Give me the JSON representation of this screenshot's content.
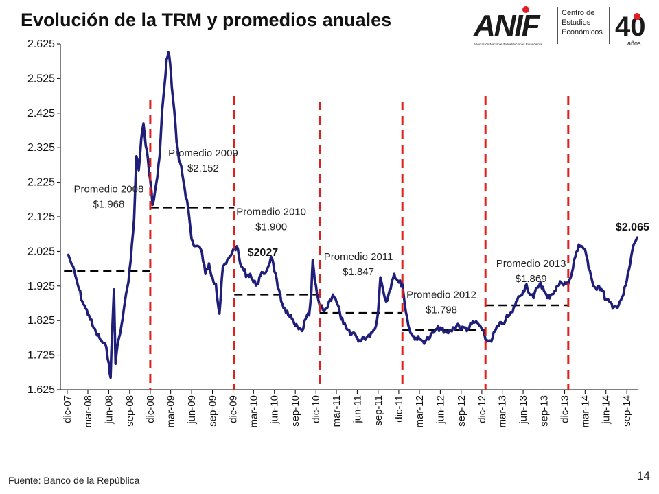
{
  "slide": {
    "title": "Evolución de la TRM y promedios anuales",
    "source": "Fuente: Banco de la República",
    "page_number": "14"
  },
  "logo": {
    "brand": "ANIF",
    "line1": "Centro de",
    "line2": "Estudios",
    "line3": "Económicos",
    "subtitle": "Asociación Nacional de Instituciones Financieras",
    "anniversary": "40",
    "anniversary_sub": "años",
    "brand_color": "#1a1a1a",
    "accent_color": "#e01e24"
  },
  "chart_data": {
    "type": "line",
    "title": "",
    "xlabel": "",
    "ylabel": "",
    "ylim": [
      1625,
      2625
    ],
    "yticks": [
      1625,
      1725,
      1825,
      1925,
      2025,
      2125,
      2225,
      2325,
      2425,
      2525,
      2625
    ],
    "ytick_labels": [
      "1.625",
      "1.725",
      "1.825",
      "1.925",
      "2.025",
      "2.125",
      "2.225",
      "2.325",
      "2.425",
      "2.525",
      "2.625"
    ],
    "xticks": [
      "dic-07",
      "mar-08",
      "jun-08",
      "sep-08",
      "dic-08",
      "mar-09",
      "jun-09",
      "sep-09",
      "dic-09",
      "mar-10",
      "jun-10",
      "sep-10",
      "dic-10",
      "mar-11",
      "jun-11",
      "sep-11",
      "dic-11",
      "mar-12",
      "jun-12",
      "sep-12",
      "dic-12",
      "mar-13",
      "jun-13",
      "sep-13",
      "dic-13",
      "mar-14",
      "jun-14",
      "sep-14"
    ],
    "grid": false,
    "line_color": "#1f1f7a",
    "avg_color": "#000000",
    "divider_color": "#e0201c",
    "series": [
      {
        "values": [
          [
            "2007-12-20",
            2015
          ],
          [
            "2008-01-05",
            1985
          ],
          [
            "2008-01-20",
            1955
          ],
          [
            "2008-02-05",
            1915
          ],
          [
            "2008-02-20",
            1880
          ],
          [
            "2008-03-05",
            1860
          ],
          [
            "2008-03-20",
            1840
          ],
          [
            "2008-04-05",
            1810
          ],
          [
            "2008-04-20",
            1790
          ],
          [
            "2008-05-05",
            1775
          ],
          [
            "2008-05-20",
            1760
          ],
          [
            "2008-06-05",
            1745
          ],
          [
            "2008-06-16",
            1700
          ],
          [
            "2008-06-23",
            1660
          ],
          [
            "2008-06-30",
            1790
          ],
          [
            "2008-07-08",
            1915
          ],
          [
            "2008-07-15",
            1700
          ],
          [
            "2008-07-25",
            1760
          ],
          [
            "2008-08-05",
            1790
          ],
          [
            "2008-08-20",
            1855
          ],
          [
            "2008-09-05",
            1920
          ],
          [
            "2008-09-20",
            2000
          ],
          [
            "2008-10-05",
            2120
          ],
          [
            "2008-10-15",
            2300
          ],
          [
            "2008-10-25",
            2260
          ],
          [
            "2008-11-05",
            2350
          ],
          [
            "2008-11-15",
            2395
          ],
          [
            "2008-11-25",
            2330
          ],
          [
            "2008-12-05",
            2290
          ],
          [
            "2008-12-15",
            2230
          ],
          [
            "2008-12-25",
            2160
          ],
          [
            "2009-01-05",
            2200
          ],
          [
            "2009-01-15",
            2240
          ],
          [
            "2009-01-25",
            2300
          ],
          [
            "2009-02-05",
            2430
          ],
          [
            "2009-02-15",
            2500
          ],
          [
            "2009-02-25",
            2580
          ],
          [
            "2009-03-05",
            2600
          ],
          [
            "2009-03-12",
            2570
          ],
          [
            "2009-03-20",
            2500
          ],
          [
            "2009-03-31",
            2430
          ],
          [
            "2009-04-10",
            2340
          ],
          [
            "2009-04-20",
            2290
          ],
          [
            "2009-05-01",
            2270
          ],
          [
            "2009-05-15",
            2210
          ],
          [
            "2009-05-31",
            2150
          ],
          [
            "2009-06-15",
            2060
          ],
          [
            "2009-06-30",
            2040
          ],
          [
            "2009-07-15",
            2040
          ],
          [
            "2009-07-31",
            2020
          ],
          [
            "2009-08-15",
            1960
          ],
          [
            "2009-08-31",
            1990
          ],
          [
            "2009-09-15",
            1950
          ],
          [
            "2009-09-30",
            1930
          ],
          [
            "2009-10-08",
            1880
          ],
          [
            "2009-10-16",
            1845
          ],
          [
            "2009-10-31",
            1980
          ],
          [
            "2009-11-15",
            1990
          ],
          [
            "2009-11-30",
            2010
          ],
          [
            "2009-12-15",
            2030
          ],
          [
            "2009-12-31",
            2040
          ],
          [
            "2010-01-15",
            1990
          ],
          [
            "2010-01-31",
            1970
          ],
          [
            "2010-02-15",
            1955
          ],
          [
            "2010-02-28",
            1960
          ],
          [
            "2010-03-15",
            1935
          ],
          [
            "2010-03-31",
            1930
          ],
          [
            "2010-04-15",
            1955
          ],
          [
            "2010-04-30",
            1960
          ],
          [
            "2010-05-15",
            1975
          ],
          [
            "2010-05-31",
            2010
          ],
          [
            "2010-06-10",
            1990
          ],
          [
            "2010-06-30",
            1920
          ],
          [
            "2010-07-15",
            1880
          ],
          [
            "2010-07-31",
            1860
          ],
          [
            "2010-08-15",
            1840
          ],
          [
            "2010-08-31",
            1830
          ],
          [
            "2010-09-15",
            1810
          ],
          [
            "2010-09-30",
            1800
          ],
          [
            "2010-10-15",
            1795
          ],
          [
            "2010-10-31",
            1830
          ],
          [
            "2010-11-15",
            1840
          ],
          [
            "2010-11-25",
            1910
          ],
          [
            "2010-12-01",
            2000
          ],
          [
            "2010-12-10",
            1940
          ],
          [
            "2010-12-20",
            1900
          ],
          [
            "2010-12-31",
            1870
          ],
          [
            "2011-01-15",
            1855
          ],
          [
            "2011-01-31",
            1860
          ],
          [
            "2011-02-15",
            1885
          ],
          [
            "2011-02-28",
            1900
          ],
          [
            "2011-03-15",
            1880
          ],
          [
            "2011-03-31",
            1845
          ],
          [
            "2011-04-15",
            1815
          ],
          [
            "2011-04-30",
            1800
          ],
          [
            "2011-05-15",
            1785
          ],
          [
            "2011-05-31",
            1790
          ],
          [
            "2011-06-15",
            1775
          ],
          [
            "2011-06-30",
            1765
          ],
          [
            "2011-07-15",
            1775
          ],
          [
            "2011-07-31",
            1780
          ],
          [
            "2011-08-15",
            1790
          ],
          [
            "2011-08-31",
            1800
          ],
          [
            "2011-09-15",
            1850
          ],
          [
            "2011-09-25",
            1950
          ],
          [
            "2011-10-05",
            1920
          ],
          [
            "2011-10-20",
            1880
          ],
          [
            "2011-10-31",
            1900
          ],
          [
            "2011-11-15",
            1940
          ],
          [
            "2011-11-25",
            1960
          ],
          [
            "2011-12-05",
            1945
          ],
          [
            "2011-12-15",
            1935
          ],
          [
            "2011-12-31",
            1930
          ],
          [
            "2012-01-15",
            1850
          ],
          [
            "2012-01-31",
            1800
          ],
          [
            "2012-02-15",
            1780
          ],
          [
            "2012-02-29",
            1775
          ],
          [
            "2012-03-15",
            1770
          ],
          [
            "2012-03-31",
            1765
          ],
          [
            "2012-04-15",
            1770
          ],
          [
            "2012-04-30",
            1775
          ],
          [
            "2012-05-15",
            1790
          ],
          [
            "2012-05-31",
            1800
          ],
          [
            "2012-06-15",
            1805
          ],
          [
            "2012-06-30",
            1790
          ],
          [
            "2012-07-15",
            1790
          ],
          [
            "2012-07-31",
            1795
          ],
          [
            "2012-08-15",
            1805
          ],
          [
            "2012-08-31",
            1815
          ],
          [
            "2012-09-15",
            1800
          ],
          [
            "2012-09-30",
            1805
          ],
          [
            "2012-10-15",
            1800
          ],
          [
            "2012-10-31",
            1815
          ],
          [
            "2012-11-15",
            1820
          ],
          [
            "2012-11-30",
            1815
          ],
          [
            "2012-12-15",
            1800
          ],
          [
            "2012-12-31",
            1770
          ],
          [
            "2013-01-15",
            1765
          ],
          [
            "2013-01-31",
            1775
          ],
          [
            "2013-02-15",
            1800
          ],
          [
            "2013-02-28",
            1810
          ],
          [
            "2013-03-15",
            1815
          ],
          [
            "2013-03-31",
            1830
          ],
          [
            "2013-04-15",
            1840
          ],
          [
            "2013-04-30",
            1850
          ],
          [
            "2013-05-15",
            1880
          ],
          [
            "2013-05-31",
            1895
          ],
          [
            "2013-06-15",
            1910
          ],
          [
            "2013-06-30",
            1930
          ],
          [
            "2013-07-15",
            1900
          ],
          [
            "2013-07-31",
            1890
          ],
          [
            "2013-08-15",
            1920
          ],
          [
            "2013-08-31",
            1935
          ],
          [
            "2013-09-15",
            1910
          ],
          [
            "2013-09-30",
            1890
          ],
          [
            "2013-10-15",
            1900
          ],
          [
            "2013-10-31",
            1910
          ],
          [
            "2013-11-15",
            1925
          ],
          [
            "2013-11-30",
            1935
          ],
          [
            "2013-12-15",
            1935
          ],
          [
            "2013-12-31",
            1930
          ],
          [
            "2014-01-15",
            1960
          ],
          [
            "2014-01-31",
            2010
          ],
          [
            "2014-02-15",
            2045
          ],
          [
            "2014-02-28",
            2040
          ],
          [
            "2014-03-15",
            2030
          ],
          [
            "2014-03-31",
            1975
          ],
          [
            "2014-04-15",
            1940
          ],
          [
            "2014-04-30",
            1920
          ],
          [
            "2014-05-15",
            1925
          ],
          [
            "2014-05-31",
            1910
          ],
          [
            "2014-06-15",
            1885
          ],
          [
            "2014-06-30",
            1880
          ],
          [
            "2014-07-15",
            1860
          ],
          [
            "2014-07-31",
            1865
          ],
          [
            "2014-08-15",
            1880
          ],
          [
            "2014-08-31",
            1900
          ],
          [
            "2014-09-15",
            1940
          ],
          [
            "2014-09-30",
            1990
          ],
          [
            "2014-10-10",
            2030
          ],
          [
            "2014-10-20",
            2050
          ],
          [
            "2014-10-31",
            2065
          ]
        ]
      }
    ],
    "annual_averages": [
      {
        "year": "2008",
        "value": 1968,
        "start": "2007-12-01",
        "end": "2008-12-15"
      },
      {
        "year": "2009",
        "value": 2152,
        "start": "2008-12-15",
        "end": "2009-12-20"
      },
      {
        "year": "2010",
        "value": 1900,
        "start": "2009-12-20",
        "end": "2010-12-31"
      },
      {
        "year": "2011",
        "value": 1847,
        "start": "2010-12-31",
        "end": "2011-12-31"
      },
      {
        "year": "2012",
        "value": 1798,
        "start": "2011-12-31",
        "end": "2012-12-31"
      },
      {
        "year": "2013",
        "value": 1869,
        "start": "2012-12-31",
        "end": "2013-12-31"
      }
    ],
    "year_dividers": [
      "2008-12-15",
      "2009-12-20",
      "2010-12-31",
      "2011-12-31",
      "2012-12-31",
      "2013-12-31"
    ],
    "annotations": [
      {
        "line1": "Promedio 2008",
        "line2": "$1.968",
        "x": "2008-06-15",
        "y": 2195
      },
      {
        "line1": "Promedio 2009",
        "line2": "$2.152",
        "x": "2009-08-05",
        "y": 2300
      },
      {
        "line1": "Promedio 2010",
        "line2": "$1.900",
        "x": "2010-06-01",
        "y": 2130
      },
      {
        "line1": "Promedio 2011",
        "line2": "$1.847",
        "x": "2011-06-20",
        "y": 2000
      },
      {
        "line1": "Promedio 2012",
        "line2": "$1.798",
        "x": "2012-06-20",
        "y": 1890
      },
      {
        "line1": "Promedio 2013",
        "line2": "$1.869",
        "x": "2013-07-20",
        "y": 1980
      },
      {
        "line1": "$2027",
        "bold": true,
        "x": "2010-04-25",
        "y": 2012
      },
      {
        "line1": "$2.065",
        "bold": true,
        "x": "2014-10-10",
        "y": 2085
      }
    ]
  }
}
